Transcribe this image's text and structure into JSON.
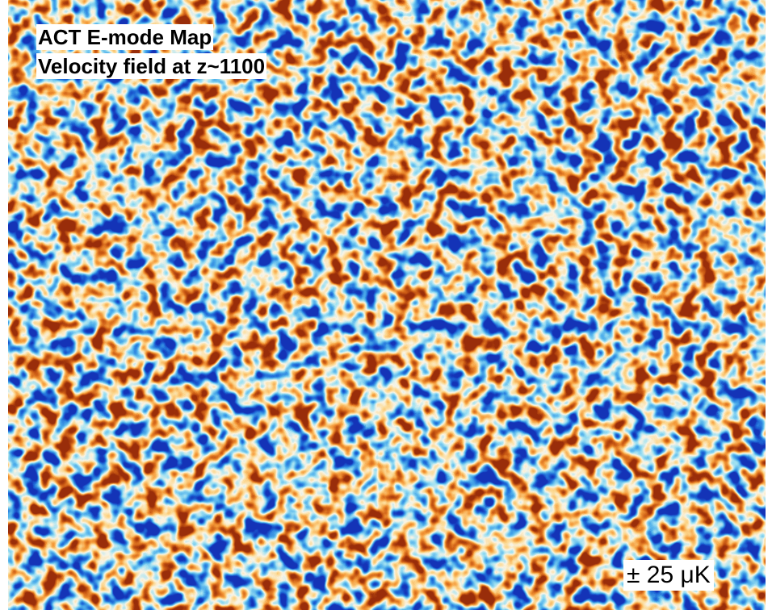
{
  "title_lines": [
    "ACT E-mode Map",
    "Velocity field at z~1100"
  ],
  "scale_label": "± 25 μK"
}
